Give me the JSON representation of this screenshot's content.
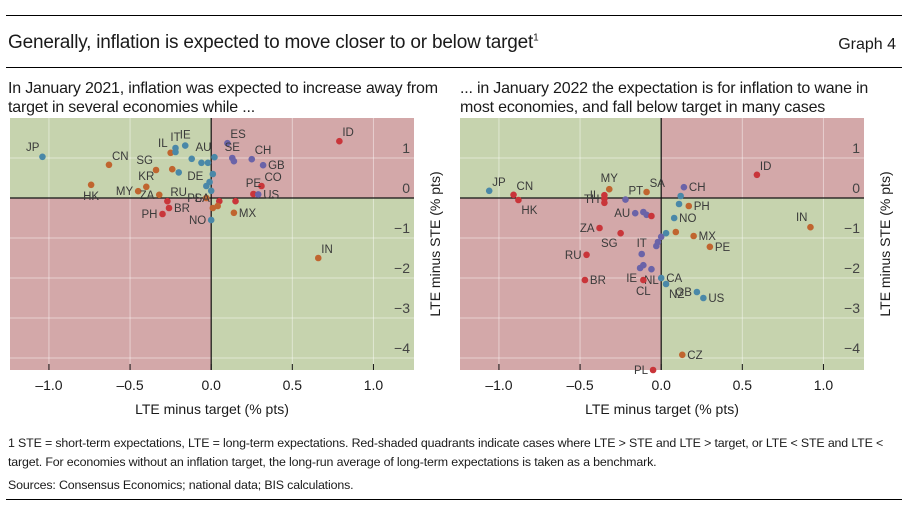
{
  "header": {
    "title": "Generally, inflation is expected to move closer to or below target",
    "title_footnote_marker": "1",
    "graph_label": "Graph 4"
  },
  "footer": {
    "footnote": "1  STE = short-term expectations, LTE = long-term expectations. Red-shaded quadrants indicate cases where LTE > STE and LTE > target, or LTE < STE and LTE < target. For economies without an inflation target, the long-run average of long-term expectations is taken as a benchmark.",
    "sources": "Sources: Consensus Economics; national data; BIS calculations."
  },
  "colors": {
    "green_quadrant": "#c6d3ae",
    "red_quadrant": "#d3a8a9",
    "series_red": "#c9353a",
    "series_orange": "#c0652f",
    "series_blue": "#4a88a8",
    "series_purple": "#6a63a8"
  },
  "chart_data": [
    {
      "type": "scatter",
      "title": "In January 2021, inflation was expected to increase away from target in several economies while ...",
      "xlabel": "LTE minus target (% pts)",
      "ylabel": "LTE minus STE (% pts)",
      "xlim": [
        -1.24,
        1.25
      ],
      "ylim": [
        -4.3,
        2.0
      ],
      "xticks": [
        "-1.0",
        "-0.5",
        "0.0",
        "0.5",
        "1.0"
      ],
      "xtick_values": [
        -1.0,
        -0.5,
        0.0,
        0.5,
        1.0
      ],
      "yticks": [
        "1",
        "0",
        "-1",
        "-2",
        "-3",
        "-4"
      ],
      "ytick_values": [
        1,
        0,
        -1,
        -2,
        -3,
        -4
      ],
      "grid": true,
      "quadrants": {
        "top_left": "green",
        "top_right": "red",
        "bottom_left": "red",
        "bottom_right": "green"
      },
      "points": [
        {
          "label": "JP",
          "x": -1.04,
          "y": 1.03,
          "color": "blue",
          "label_pos": "above-left"
        },
        {
          "label": "CN",
          "x": -0.63,
          "y": 0.83,
          "color": "orange",
          "label_pos": "above-right"
        },
        {
          "label": "HK",
          "x": -0.74,
          "y": 0.33,
          "color": "orange",
          "label_pos": "below"
        },
        {
          "label": "MY",
          "x": -0.45,
          "y": 0.17,
          "color": "orange",
          "label_pos": "left"
        },
        {
          "label": "KR",
          "x": -0.4,
          "y": 0.28,
          "color": "orange",
          "label_pos": "above"
        },
        {
          "label": "SG",
          "x": -0.34,
          "y": 0.7,
          "color": "orange",
          "label_pos": "above-left"
        },
        {
          "label": "IL",
          "x": -0.25,
          "y": 1.13,
          "color": "orange",
          "label_pos": "above-left"
        },
        {
          "label": "IT",
          "x": -0.22,
          "y": 1.25,
          "color": "blue",
          "label_pos": "above"
        },
        {
          "label": "IE",
          "x": -0.16,
          "y": 1.31,
          "color": "blue",
          "label_pos": "above"
        },
        {
          "label": "",
          "x": -0.22,
          "y": 1.15,
          "color": "blue",
          "label_pos": ""
        },
        {
          "label": "",
          "x": -0.24,
          "y": 0.72,
          "color": "orange",
          "label_pos": ""
        },
        {
          "label": "",
          "x": -0.2,
          "y": 0.64,
          "color": "blue",
          "label_pos": ""
        },
        {
          "label": "",
          "x": -0.12,
          "y": 0.98,
          "color": "blue",
          "label_pos": ""
        },
        {
          "label": "",
          "x": -0.06,
          "y": 0.88,
          "color": "blue",
          "label_pos": ""
        },
        {
          "label": "",
          "x": -0.02,
          "y": 0.88,
          "color": "blue",
          "label_pos": ""
        },
        {
          "label": "AU",
          "x": 0.02,
          "y": 1.02,
          "color": "blue",
          "label_pos": "above-left"
        },
        {
          "label": "",
          "x": 0.01,
          "y": 0.6,
          "color": "blue",
          "label_pos": ""
        },
        {
          "label": "DE",
          "x": -0.03,
          "y": 0.3,
          "color": "blue",
          "label_pos": "above-left"
        },
        {
          "label": "",
          "x": -0.01,
          "y": 0.4,
          "color": "blue",
          "label_pos": ""
        },
        {
          "label": "",
          "x": 0.0,
          "y": 0.18,
          "color": "blue",
          "label_pos": ""
        },
        {
          "label": "PL",
          "x": -0.03,
          "y": 0.0,
          "color": "orange",
          "label_pos": "left"
        },
        {
          "label": "RU",
          "x": -0.27,
          "y": -0.08,
          "color": "red",
          "label_pos": "above-right"
        },
        {
          "label": "ZA",
          "x": -0.32,
          "y": 0.08,
          "color": "orange",
          "label_pos": "left"
        },
        {
          "label": "BR",
          "x": -0.26,
          "y": -0.25,
          "color": "red",
          "label_pos": "right"
        },
        {
          "label": "PH",
          "x": -0.3,
          "y": -0.4,
          "color": "red",
          "label_pos": "left"
        },
        {
          "label": "ES",
          "x": 0.1,
          "y": 1.37,
          "color": "purple",
          "label_pos": "above-right"
        },
        {
          "label": "SE",
          "x": 0.13,
          "y": 1.0,
          "color": "purple",
          "label_pos": "above"
        },
        {
          "label": "",
          "x": 0.14,
          "y": 0.92,
          "color": "purple",
          "label_pos": ""
        },
        {
          "label": "CH",
          "x": 0.25,
          "y": 0.97,
          "color": "purple",
          "label_pos": "above-right"
        },
        {
          "label": "GB",
          "x": 0.32,
          "y": 0.82,
          "color": "purple",
          "label_pos": "right"
        },
        {
          "label": "CO",
          "x": 0.31,
          "y": 0.3,
          "color": "red",
          "label_pos": "above-right"
        },
        {
          "label": "PE",
          "x": 0.26,
          "y": 0.1,
          "color": "red",
          "label_pos": "above"
        },
        {
          "label": "US",
          "x": 0.29,
          "y": 0.09,
          "color": "purple",
          "label_pos": "right"
        },
        {
          "label": "",
          "x": 0.05,
          "y": -0.08,
          "color": "red",
          "label_pos": ""
        },
        {
          "label": "",
          "x": 0.15,
          "y": -0.08,
          "color": "red",
          "label_pos": ""
        },
        {
          "label": "SA",
          "x": 0.01,
          "y": -0.25,
          "color": "orange",
          "label_pos": "above-left"
        },
        {
          "label": "",
          "x": 0.04,
          "y": -0.2,
          "color": "orange",
          "label_pos": ""
        },
        {
          "label": "NO",
          "x": 0.0,
          "y": -0.55,
          "color": "blue",
          "label_pos": "left"
        },
        {
          "label": "MX",
          "x": 0.14,
          "y": -0.37,
          "color": "orange",
          "label_pos": "right"
        },
        {
          "label": "ID",
          "x": 0.79,
          "y": 1.42,
          "color": "red",
          "label_pos": "above-right"
        },
        {
          "label": "IN",
          "x": 0.66,
          "y": -1.5,
          "color": "orange",
          "label_pos": "above-right"
        }
      ]
    },
    {
      "type": "scatter",
      "title": "... in January 2022 the expectation is for inflation to wane in most economies, and fall below target in many cases",
      "xlabel": "LTE minus target (% pts)",
      "ylabel": "LTE minus STE (% pts)",
      "xlim": [
        -1.24,
        1.25
      ],
      "ylim": [
        -4.3,
        2.0
      ],
      "xticks": [
        "-1.0",
        "-0.5",
        "0.0",
        "0.5",
        "1.0"
      ],
      "xtick_values": [
        -1.0,
        -0.5,
        0.0,
        0.5,
        1.0
      ],
      "yticks": [
        "1",
        "0",
        "-1",
        "-2",
        "-3",
        "-4"
      ],
      "ytick_values": [
        1,
        0,
        -1,
        -2,
        -3,
        -4
      ],
      "grid": true,
      "quadrants": {
        "top_left": "green",
        "top_right": "red",
        "bottom_left": "red",
        "bottom_right": "green"
      },
      "points": [
        {
          "label": "JP",
          "x": -1.06,
          "y": 0.18,
          "color": "blue",
          "label_pos": "above-right"
        },
        {
          "label": "CN",
          "x": -0.91,
          "y": 0.08,
          "color": "red",
          "label_pos": "above-right"
        },
        {
          "label": "HK",
          "x": -0.88,
          "y": -0.05,
          "color": "red",
          "label_pos": "below-right"
        },
        {
          "label": "MY",
          "x": -0.32,
          "y": 0.22,
          "color": "orange",
          "label_pos": "above"
        },
        {
          "label": "IL",
          "x": -0.35,
          "y": 0.07,
          "color": "red",
          "label_pos": "left"
        },
        {
          "label": "TH",
          "x": -0.35,
          "y": -0.02,
          "color": "red",
          "label_pos": "left"
        },
        {
          "label": "",
          "x": -0.35,
          "y": -0.12,
          "color": "red",
          "label_pos": ""
        },
        {
          "label": "PT",
          "x": -0.22,
          "y": -0.04,
          "color": "purple",
          "label_pos": "above-right"
        },
        {
          "label": "SA",
          "x": -0.09,
          "y": 0.15,
          "color": "orange",
          "label_pos": "above-right"
        },
        {
          "label": "AU",
          "x": -0.16,
          "y": -0.38,
          "color": "purple",
          "label_pos": "left"
        },
        {
          "label": "",
          "x": -0.11,
          "y": -0.35,
          "color": "purple",
          "label_pos": ""
        },
        {
          "label": "",
          "x": -0.09,
          "y": -0.42,
          "color": "purple",
          "label_pos": ""
        },
        {
          "label": "",
          "x": -0.06,
          "y": -0.45,
          "color": "red",
          "label_pos": ""
        },
        {
          "label": "ZA",
          "x": -0.38,
          "y": -0.75,
          "color": "red",
          "label_pos": "left"
        },
        {
          "label": "SG",
          "x": -0.25,
          "y": -0.88,
          "color": "red",
          "label_pos": "below-left"
        },
        {
          "label": "IT",
          "x": -0.12,
          "y": -1.4,
          "color": "purple",
          "label_pos": "above"
        },
        {
          "label": "",
          "x": -0.03,
          "y": -1.2,
          "color": "purple",
          "label_pos": ""
        },
        {
          "label": "",
          "x": -0.02,
          "y": -1.1,
          "color": "purple",
          "label_pos": ""
        },
        {
          "label": "",
          "x": 0.0,
          "y": -0.97,
          "color": "purple",
          "label_pos": ""
        },
        {
          "label": "",
          "x": 0.03,
          "y": -0.88,
          "color": "blue",
          "label_pos": ""
        },
        {
          "label": "IE",
          "x": -0.13,
          "y": -1.75,
          "color": "purple",
          "label_pos": "below-left"
        },
        {
          "label": "",
          "x": -0.11,
          "y": -1.68,
          "color": "purple",
          "label_pos": ""
        },
        {
          "label": "NL",
          "x": -0.06,
          "y": -1.78,
          "color": "purple",
          "label_pos": "below"
        },
        {
          "label": "CA",
          "x": 0.0,
          "y": -2.0,
          "color": "blue",
          "label_pos": "right"
        },
        {
          "label": "NZ",
          "x": 0.03,
          "y": -2.15,
          "color": "blue",
          "label_pos": "below-right"
        },
        {
          "label": "CL",
          "x": -0.11,
          "y": -2.05,
          "color": "red",
          "label_pos": "below"
        },
        {
          "label": "RU",
          "x": -0.46,
          "y": -1.42,
          "color": "red",
          "label_pos": "left"
        },
        {
          "label": "BR",
          "x": -0.47,
          "y": -2.05,
          "color": "red",
          "label_pos": "right"
        },
        {
          "label": "CH",
          "x": 0.14,
          "y": 0.27,
          "color": "purple",
          "label_pos": "right"
        },
        {
          "label": "",
          "x": 0.12,
          "y": 0.05,
          "color": "blue",
          "label_pos": ""
        },
        {
          "label": "",
          "x": 0.11,
          "y": -0.15,
          "color": "blue",
          "label_pos": ""
        },
        {
          "label": "PH",
          "x": 0.17,
          "y": -0.2,
          "color": "orange",
          "label_pos": "right"
        },
        {
          "label": "NO",
          "x": 0.08,
          "y": -0.5,
          "color": "blue",
          "label_pos": "right"
        },
        {
          "label": "",
          "x": 0.09,
          "y": -0.85,
          "color": "orange",
          "label_pos": ""
        },
        {
          "label": "MX",
          "x": 0.2,
          "y": -0.95,
          "color": "orange",
          "label_pos": "right"
        },
        {
          "label": "PE",
          "x": 0.3,
          "y": -1.22,
          "color": "orange",
          "label_pos": "right"
        },
        {
          "label": "GB",
          "x": 0.22,
          "y": -2.35,
          "color": "blue",
          "label_pos": "left"
        },
        {
          "label": "US",
          "x": 0.26,
          "y": -2.5,
          "color": "blue",
          "label_pos": "right"
        },
        {
          "label": "CZ",
          "x": 0.13,
          "y": -3.92,
          "color": "orange",
          "label_pos": "right"
        },
        {
          "label": "PL",
          "x": -0.05,
          "y": -4.3,
          "color": "red",
          "label_pos": "left"
        },
        {
          "label": "ID",
          "x": 0.59,
          "y": 0.58,
          "color": "red",
          "label_pos": "above-right"
        },
        {
          "label": "IN",
          "x": 0.92,
          "y": -0.73,
          "color": "orange",
          "label_pos": "above-left"
        }
      ]
    }
  ]
}
